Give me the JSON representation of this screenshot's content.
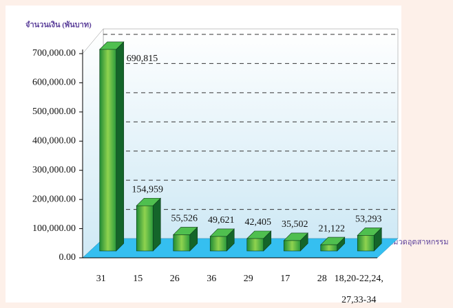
{
  "chart_data": {
    "type": "bar3d",
    "y_label": "จำนวนเงิน (พันบาท)",
    "x_label": "หมวดอุตสาหกรรม",
    "x_label_note": "1/",
    "categories": [
      "31",
      "15",
      "26",
      "36",
      "29",
      "17",
      "28",
      "18,20-22,24,\n27,33-34"
    ],
    "values": [
      690815,
      154959,
      55526,
      49621,
      42405,
      35502,
      21122,
      53293
    ],
    "value_labels": [
      "690,815",
      "154,959",
      "55,526",
      "49,621",
      "42,405",
      "35,502",
      "21,122",
      "53,293"
    ],
    "color": "#3aa84a",
    "ylim": [
      0,
      700000
    ],
    "yticks": [
      {
        "value": 0,
        "label": "0.00"
      },
      {
        "value": 100000,
        "label": "100,000.00"
      },
      {
        "value": 200000,
        "label": "200,000.00"
      },
      {
        "value": 300000,
        "label": "300,000.00"
      },
      {
        "value": 400000,
        "label": "400,000.00"
      },
      {
        "value": 500000,
        "label": "500,000.00"
      },
      {
        "value": 600000,
        "label": "600,000.00"
      },
      {
        "value": 700000,
        "label": "700,000.00"
      }
    ],
    "grid": true
  }
}
